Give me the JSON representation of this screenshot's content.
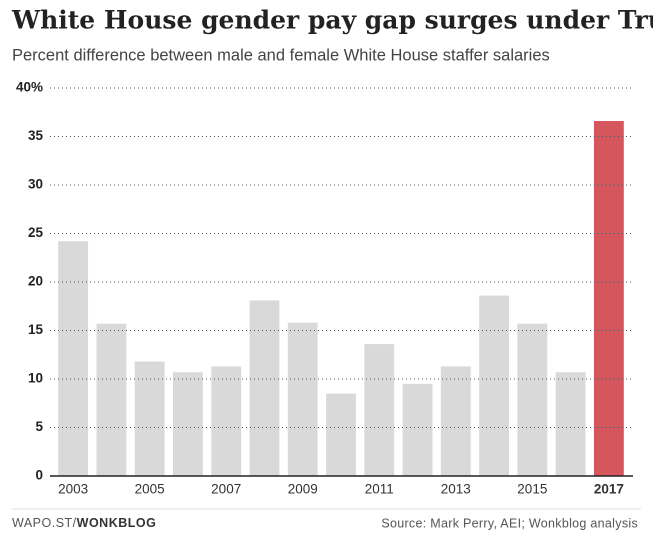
{
  "chart_data": {
    "type": "bar",
    "title": "White House gender pay gap surges under Trump",
    "subtitle": "Percent difference between male and female White House staffer salaries",
    "categories": [
      "2003",
      null,
      "2005",
      null,
      "2007",
      null,
      "2009",
      null,
      "2011",
      null,
      "2013",
      null,
      "2015",
      null,
      "2017"
    ],
    "values": [
      24.2,
      15.7,
      11.8,
      10.7,
      11.3,
      18.1,
      15.8,
      8.5,
      13.6,
      9.5,
      11.3,
      18.6,
      15.7,
      10.7,
      36.6
    ],
    "colors": [
      "#d9d9d9",
      "#d9d9d9",
      "#d9d9d9",
      "#d9d9d9",
      "#d9d9d9",
      "#d9d9d9",
      "#d9d9d9",
      "#d9d9d9",
      "#d9d9d9",
      "#d9d9d9",
      "#d9d9d9",
      "#d9d9d9",
      "#d9d9d9",
      "#d9d9d9",
      "#d6565e"
    ],
    "ylim": [
      0,
      40
    ],
    "yticks": [
      0,
      5,
      10,
      15,
      20,
      25,
      30,
      35,
      {
        "value": 40,
        "label": "40%"
      }
    ],
    "grid": true,
    "footer_site": "WAPO.ST/",
    "footer_brand": "WONKBLOG",
    "source": "Source: Mark Perry, AEI; Wonkblog analysis"
  }
}
